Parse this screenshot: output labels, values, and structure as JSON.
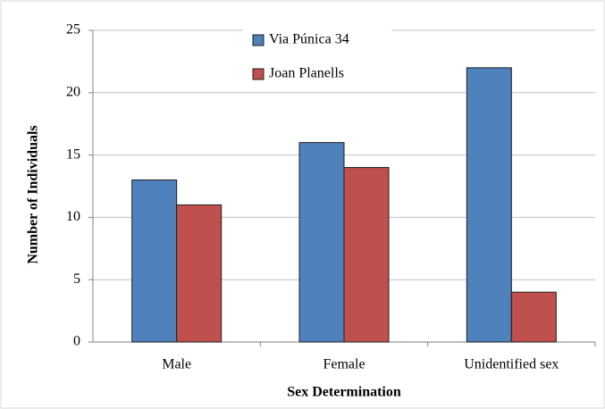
{
  "chart_data": {
    "type": "bar",
    "x_label": "Sex Determination",
    "y_label": "Number of Individuals",
    "categories": [
      "Male",
      "Female",
      "Unidentified sex"
    ],
    "series": [
      {
        "name": "Via Púnica 34",
        "color": "#4f81bd",
        "values": [
          13,
          16,
          22
        ]
      },
      {
        "name": "Joan Planells",
        "color": "#c0504d",
        "values": [
          11,
          14,
          4
        ]
      }
    ],
    "ylim": [
      0,
      25
    ],
    "yticks": [
      0,
      5,
      10,
      15,
      20,
      25
    ],
    "grid": true
  }
}
